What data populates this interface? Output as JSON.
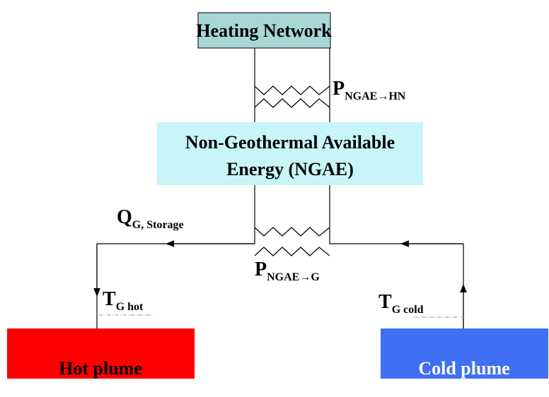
{
  "nodes": [
    {
      "label": "Heating Network"
    },
    {
      "lines": [
        "Non-Geothermal Available",
        "Energy (NGAE)"
      ]
    },
    {
      "label": "Hot plume"
    },
    {
      "label": "Cold plume"
    }
  ],
  "labels": [
    {
      "main": "Q",
      "sub": "G, Storage"
    },
    {
      "main": "P",
      "sub": "NGAE→HN"
    },
    {
      "main": "P",
      "sub": "NGAE→G"
    },
    {
      "main": "T",
      "sub": "G hot"
    },
    {
      "main": "T",
      "sub": "G cold"
    }
  ]
}
